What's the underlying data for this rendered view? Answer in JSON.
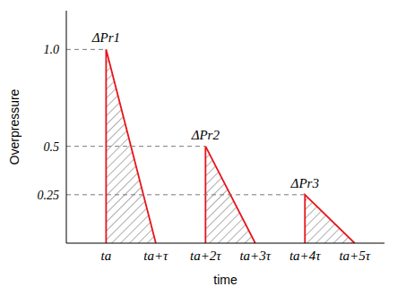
{
  "chart_data": {
    "type": "area",
    "x_label": "time",
    "y_label": "Overpressure",
    "x": [
      0,
      0,
      1,
      2,
      2,
      3,
      4,
      4,
      5
    ],
    "series": [
      {
        "name": "ΔPr1",
        "color": "#e8141b",
        "values": [
          0,
          1,
          0,
          null,
          null,
          null,
          null,
          null,
          null
        ]
      },
      {
        "name": "ΔPr2",
        "color": "#e8141b",
        "values": [
          null,
          null,
          null,
          0,
          0.5,
          0,
          null,
          null,
          null
        ]
      },
      {
        "name": "ΔPr3",
        "color": "#e8141b",
        "values": [
          null,
          null,
          null,
          null,
          null,
          null,
          0,
          0.25,
          0
        ]
      }
    ],
    "xlim": [
      -0.8,
      5.6
    ],
    "ylim": [
      0,
      1.2
    ],
    "xticks": [
      {
        "value": 0,
        "label": "ta"
      },
      {
        "value": 1,
        "label": "ta+τ"
      },
      {
        "value": 2,
        "label": "ta+2τ"
      },
      {
        "value": 3,
        "label": "ta+3τ"
      },
      {
        "value": 4,
        "label": "ta+4τ"
      },
      {
        "value": 5,
        "label": "ta+5τ"
      }
    ],
    "yticks": [
      {
        "value": 0.25,
        "label": "0.25"
      },
      {
        "value": 0.5,
        "label": "0.5"
      },
      {
        "value": 1,
        "label": "1.0"
      }
    ],
    "grid": false
  }
}
